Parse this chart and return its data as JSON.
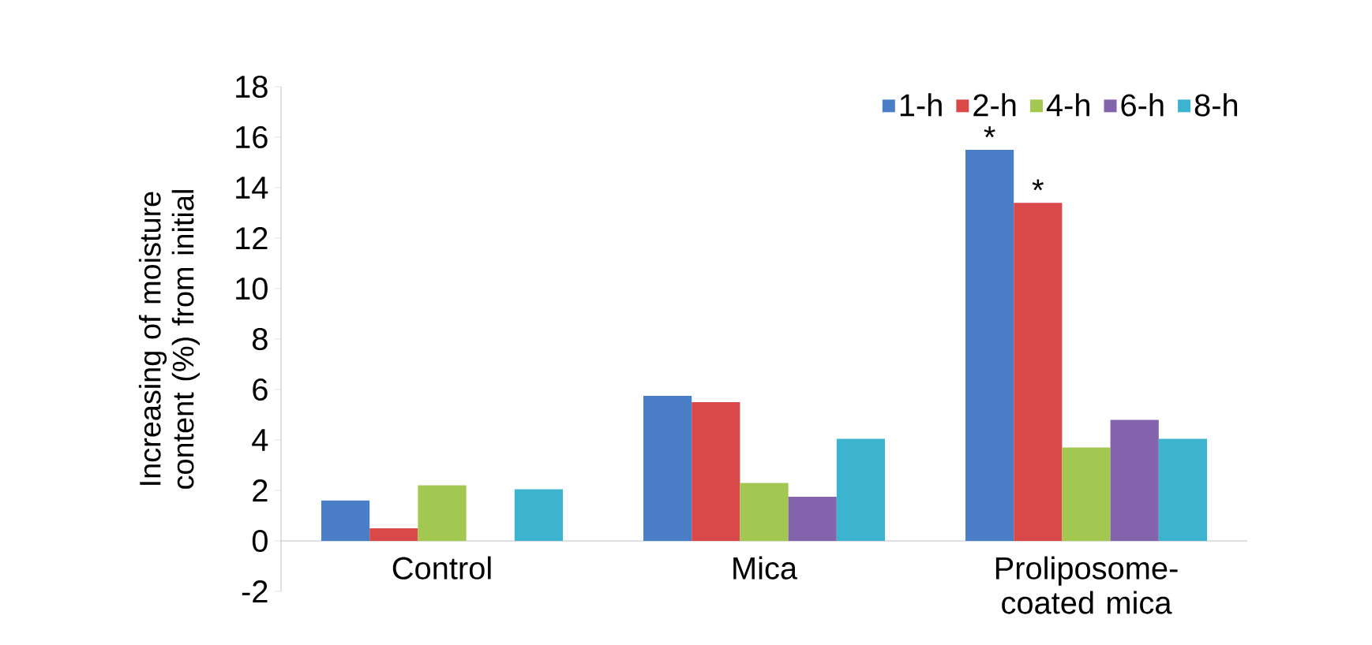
{
  "chart_data": {
    "type": "bar",
    "ylabel": "Increasing of moisture content (%) from initial",
    "categories": [
      "Control",
      "Mica",
      "Proliposome-coated mica"
    ],
    "series": [
      {
        "name": "1-h",
        "color": "#4a7fc8",
        "values": [
          1.6,
          5.75,
          15.5
        ]
      },
      {
        "name": "2-h",
        "color": "#d9494a",
        "values": [
          0.5,
          5.5,
          13.4
        ]
      },
      {
        "name": "4-h",
        "color": "#a2c851",
        "values": [
          2.2,
          2.3,
          3.7
        ]
      },
      {
        "name": "6-h",
        "color": "#8363ac",
        "values": [
          null,
          1.75,
          4.8
        ]
      },
      {
        "name": "8-h",
        "color": "#3cb4d0",
        "values": [
          2.05,
          4.05,
          4.05
        ]
      }
    ],
    "ylim": [
      -2,
      18
    ],
    "yticks": [
      -2,
      0,
      2,
      4,
      6,
      8,
      10,
      12,
      14,
      16,
      18
    ],
    "annotations": [
      "*",
      "*"
    ],
    "legend": "top right",
    "grid": false
  }
}
